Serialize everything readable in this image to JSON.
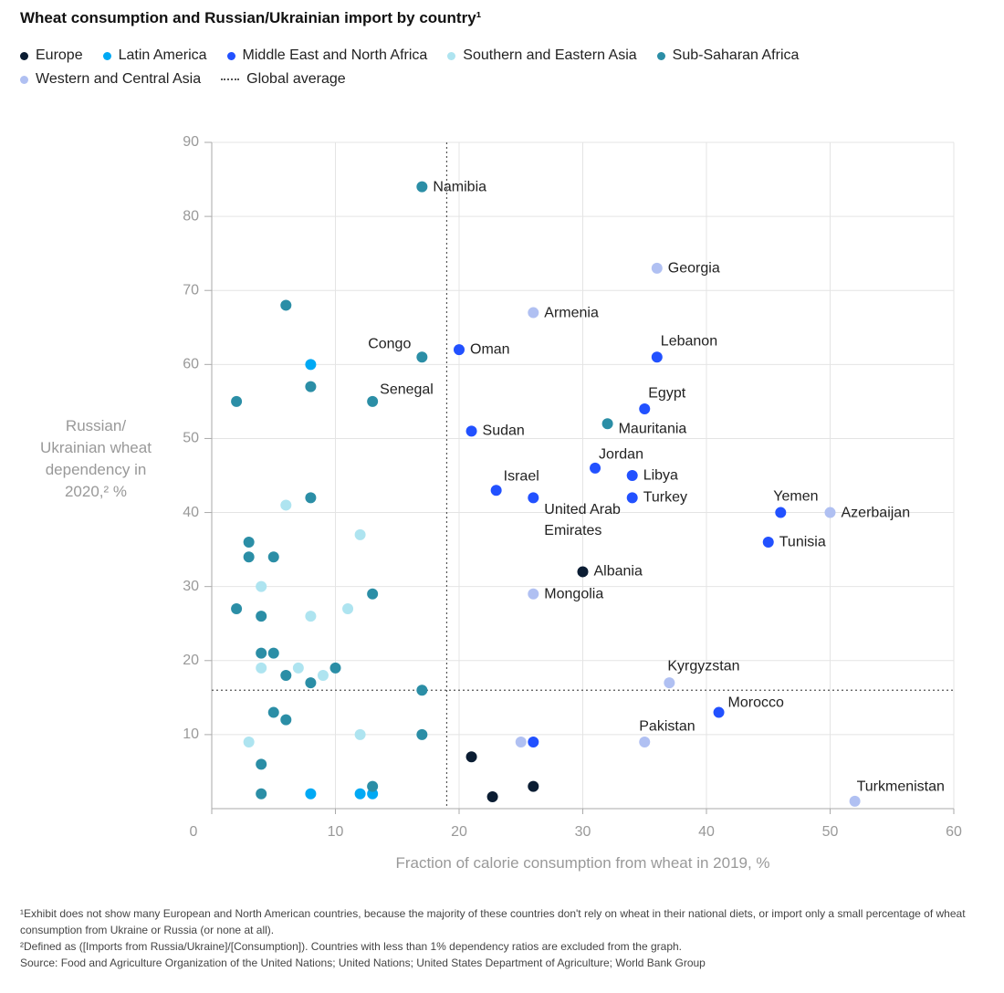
{
  "chart_data": {
    "type": "scatter",
    "title": "Wheat consumption and Russian/Ukrainian import by country¹",
    "xlabel": "Fraction of calorie consumption from wheat in 2019, %",
    "ylabel": "Russian/ Ukrainian wheat dependency in 2020,² %",
    "xlim": [
      0,
      60
    ],
    "xticks": [
      0,
      10,
      20,
      30,
      40,
      50,
      60
    ],
    "ylim": [
      0,
      90
    ],
    "yticks": [
      10,
      20,
      30,
      40,
      50,
      60,
      70,
      80,
      90
    ],
    "grid": true,
    "average": {
      "name": "Global average",
      "x": 19,
      "y": 16
    },
    "series": [
      {
        "name": "Europe",
        "color": "#0b1d33",
        "x": [
          30,
          21,
          26,
          22.7
        ],
        "values": [
          32,
          7,
          3,
          1.6
        ],
        "labels": [
          "Albania",
          null,
          null,
          null
        ]
      },
      {
        "name": "Latin America",
        "color": "#00a9f4",
        "x": [
          8,
          8,
          12,
          13
        ],
        "values": [
          60,
          2,
          2,
          2
        ],
        "labels": [
          null,
          null,
          null,
          null
        ]
      },
      {
        "name": "Middle East and North Africa",
        "color": "#2251ff",
        "x": [
          20,
          36,
          35,
          21,
          31,
          34,
          23,
          26,
          34,
          46,
          45,
          41,
          26
        ],
        "values": [
          62,
          61,
          54,
          51,
          46,
          45,
          43,
          42,
          42,
          40,
          36,
          13,
          9
        ],
        "labels": [
          "Oman",
          "Lebanon",
          "Egypt",
          "Sudan",
          "Jordan",
          "Libya",
          "Israel",
          "United Arab Emirates",
          "Turkey",
          "Yemen",
          "Tunisia",
          "Morocco",
          null
        ]
      },
      {
        "name": "Southern and Eastern Asia",
        "color": "#aee4f0",
        "x": [
          6,
          12,
          4,
          11,
          8,
          4,
          7,
          9,
          3,
          12
        ],
        "values": [
          41,
          37,
          30,
          27,
          26,
          19,
          19,
          18,
          9,
          10
        ],
        "labels": [
          null,
          null,
          null,
          null,
          null,
          null,
          null,
          null,
          null,
          null
        ]
      },
      {
        "name": "Sub-Saharan Africa",
        "color": "#2b8ea6",
        "x": [
          17,
          6,
          17,
          8,
          2,
          13,
          32,
          8,
          3,
          3,
          5,
          13,
          2,
          4,
          4,
          5,
          10,
          6,
          8,
          17,
          5,
          6,
          17,
          4,
          13,
          4
        ],
        "values": [
          84,
          68,
          61,
          57,
          55,
          55,
          52,
          42,
          36,
          34,
          34,
          29,
          27,
          26,
          21,
          21,
          19,
          18,
          17,
          16,
          13,
          12,
          10,
          6,
          3,
          2
        ],
        "labels": [
          "Namibia",
          null,
          "Congo",
          null,
          null,
          "Senegal",
          "Mauritania",
          null,
          null,
          null,
          null,
          null,
          null,
          null,
          null,
          null,
          null,
          null,
          null,
          null,
          null,
          null,
          null,
          null,
          null,
          null
        ]
      },
      {
        "name": "Western and Central Asia",
        "color": "#b0c0f2",
        "x": [
          36,
          26,
          50,
          26,
          37,
          35,
          52,
          25
        ],
        "values": [
          73,
          67,
          40,
          29,
          17,
          9,
          1,
          9
        ],
        "labels": [
          "Georgia",
          "Armenia",
          "Azerbaijan",
          "Mongolia",
          "Kyrgyzstan",
          "Pakistan",
          "Turkmenistan",
          null
        ]
      }
    ],
    "footnotes": [
      "¹Exhibit does not show many European and North American countries, because the majority of these countries don't rely on wheat in their national diets, or import only a small percentage of wheat consumption from Ukraine or Russia (or none at all).",
      "²Defined as ([Imports from Russia/Ukraine]/[Consumption]). Countries with less than 1% dependency ratios are excluded from the graph.",
      "Source: Food and Agriculture Organization of the United Nations; United Nations; United States Department of Agriculture; World Bank Group"
    ]
  }
}
